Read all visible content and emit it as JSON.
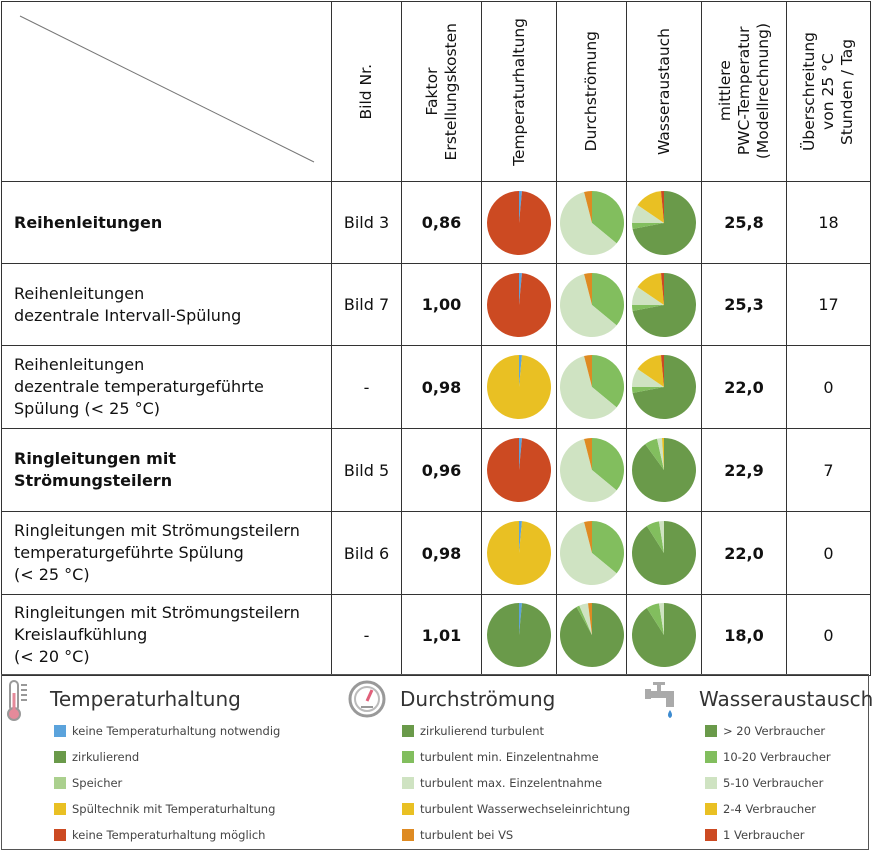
{
  "header": {
    "bild_nr": "Bild Nr.",
    "faktor": "Faktor\nErstellungskosten",
    "temperaturhaltung": "Temperaturhaltung",
    "durchstroemung": "Durchströmung",
    "wasseraustausch": "Wasseraustauch",
    "mittlere": "mittlere\nPWC-Temperatur\n(Modellrechnung)",
    "ueberschreitung": "Überschreitung\nvon 25 °C\nStunden / Tag"
  },
  "colors": {
    "blue": "#5BA3DC",
    "dark_green": "#6A9A4A",
    "speicher": "#ABD08E",
    "yellow": "#E9C023",
    "red": "#CC4A22",
    "mid_green": "#82BE5E",
    "pale_green": "#CFE3C2",
    "orange": "#DE8A22",
    "temp_text": "#3AA34A"
  },
  "rows": [
    {
      "name": "Reihenleitungen",
      "bold": true,
      "bild": "Bild 3",
      "faktor": "0,86",
      "temp": "25,8",
      "hours": "18",
      "pie_temp": [
        [
          "blue",
          1.5
        ],
        [
          "red",
          98.5
        ]
      ],
      "pie_flow": [
        [
          "mid_green",
          36
        ],
        [
          "pale_green",
          60
        ],
        [
          "orange",
          4
        ]
      ],
      "pie_water": [
        [
          "dark_green",
          72
        ],
        [
          "mid_green",
          3
        ],
        [
          "pale_green",
          9.5
        ],
        [
          "yellow",
          14
        ],
        [
          "red",
          1.5
        ]
      ]
    },
    {
      "name": "Reihenleitungen\ndezentrale Intervall-Spülung",
      "bold": false,
      "bild": "Bild 7",
      "faktor": "1,00",
      "temp": "25,3",
      "hours": "17",
      "pie_temp": [
        [
          "blue",
          1.5
        ],
        [
          "red",
          98.5
        ]
      ],
      "pie_flow": [
        [
          "mid_green",
          36
        ],
        [
          "pale_green",
          60
        ],
        [
          "orange",
          4
        ]
      ],
      "pie_water": [
        [
          "dark_green",
          72
        ],
        [
          "mid_green",
          3
        ],
        [
          "pale_green",
          9.5
        ],
        [
          "yellow",
          14
        ],
        [
          "red",
          1.5
        ]
      ]
    },
    {
      "name": "Reihenleitungen\ndezentrale temperaturgeführte\nSpülung (< 25 °C)",
      "bold": false,
      "bild": "-",
      "faktor": "0,98",
      "temp": "22,0",
      "hours": "0",
      "pie_temp": [
        [
          "blue",
          1.5
        ],
        [
          "yellow",
          98.5
        ]
      ],
      "pie_flow": [
        [
          "mid_green",
          36
        ],
        [
          "pale_green",
          60
        ],
        [
          "orange",
          4
        ]
      ],
      "pie_water": [
        [
          "dark_green",
          72
        ],
        [
          "mid_green",
          3
        ],
        [
          "pale_green",
          9.5
        ],
        [
          "yellow",
          14
        ],
        [
          "red",
          1.5
        ]
      ]
    },
    {
      "name": "Ringleitungen mit Strömungsteilern",
      "bold": true,
      "bild": "Bild 5",
      "faktor": "0,96",
      "temp": "22,9",
      "hours": "7",
      "pie_temp": [
        [
          "blue",
          1.5
        ],
        [
          "red",
          98.5
        ]
      ],
      "pie_flow": [
        [
          "mid_green",
          36
        ],
        [
          "pale_green",
          60
        ],
        [
          "orange",
          4
        ]
      ],
      "pie_water": [
        [
          "dark_green",
          90
        ],
        [
          "mid_green",
          6.5
        ],
        [
          "pale_green",
          2.5
        ],
        [
          "yellow",
          1
        ]
      ]
    },
    {
      "name": "Ringleitungen mit Strömungsteilern\ntemperaturgeführte Spülung\n(< 25 °C)",
      "bold": false,
      "bild": "Bild 6",
      "faktor": "0,98",
      "temp": "22,0",
      "hours": "0",
      "pie_temp": [
        [
          "blue",
          1.5
        ],
        [
          "yellow",
          98.5
        ]
      ],
      "pie_flow": [
        [
          "mid_green",
          36
        ],
        [
          "pale_green",
          60
        ],
        [
          "orange",
          4
        ]
      ],
      "pie_water": [
        [
          "dark_green",
          91
        ],
        [
          "mid_green",
          6.5
        ],
        [
          "pale_green",
          2.5
        ]
      ]
    },
    {
      "name": "Ringleitungen mit Strömungsteilern\nKreislaufkühlung\n(< 20 °C)",
      "bold": false,
      "bild": "-",
      "faktor": "1,01",
      "temp": "18,0",
      "hours": "0",
      "pie_temp": [
        [
          "blue",
          1.5
        ],
        [
          "dark_green",
          98.5
        ]
      ],
      "pie_flow": [
        [
          "dark_green",
          92
        ],
        [
          "mid_green",
          1.5
        ],
        [
          "pale_green",
          4.5
        ],
        [
          "orange",
          2
        ]
      ],
      "pie_water": [
        [
          "dark_green",
          91
        ],
        [
          "mid_green",
          6.5
        ],
        [
          "pale_green",
          2.5
        ]
      ]
    }
  ],
  "legend": [
    {
      "title": "Temperaturhaltung",
      "icon": "thermometer-icon",
      "items": [
        {
          "label": "keine Temperaturhaltung notwendig",
          "color": "blue"
        },
        {
          "label": "zirkulierend",
          "color": "dark_green"
        },
        {
          "label": "Speicher",
          "color": "speicher"
        },
        {
          "label": "Spültechnik mit Temperaturhaltung",
          "color": "yellow"
        },
        {
          "label": "keine Temperaturhaltung möglich",
          "color": "red"
        }
      ]
    },
    {
      "title": "Durchströmung",
      "icon": "gauge-icon",
      "items": [
        {
          "label": "zirkulierend turbulent",
          "color": "dark_green"
        },
        {
          "label": "turbulent min. Einzelentnahme",
          "color": "mid_green"
        },
        {
          "label": "turbulent max. Einzelentnahme",
          "color": "pale_green"
        },
        {
          "label": "turbulent Wasserwechseleinrichtung",
          "color": "yellow"
        },
        {
          "label": "turbulent bei VS",
          "color": "orange"
        }
      ]
    },
    {
      "title": "Wasseraustausch",
      "icon": "faucet-icon",
      "items": [
        {
          "label": "> 20 Verbraucher",
          "color": "dark_green"
        },
        {
          "label": "10-20 Verbraucher",
          "color": "mid_green"
        },
        {
          "label": "5-10 Verbraucher",
          "color": "pale_green"
        },
        {
          "label": "2-4 Verbraucher",
          "color": "yellow"
        },
        {
          "label": "1 Verbraucher",
          "color": "red"
        }
      ]
    }
  ]
}
